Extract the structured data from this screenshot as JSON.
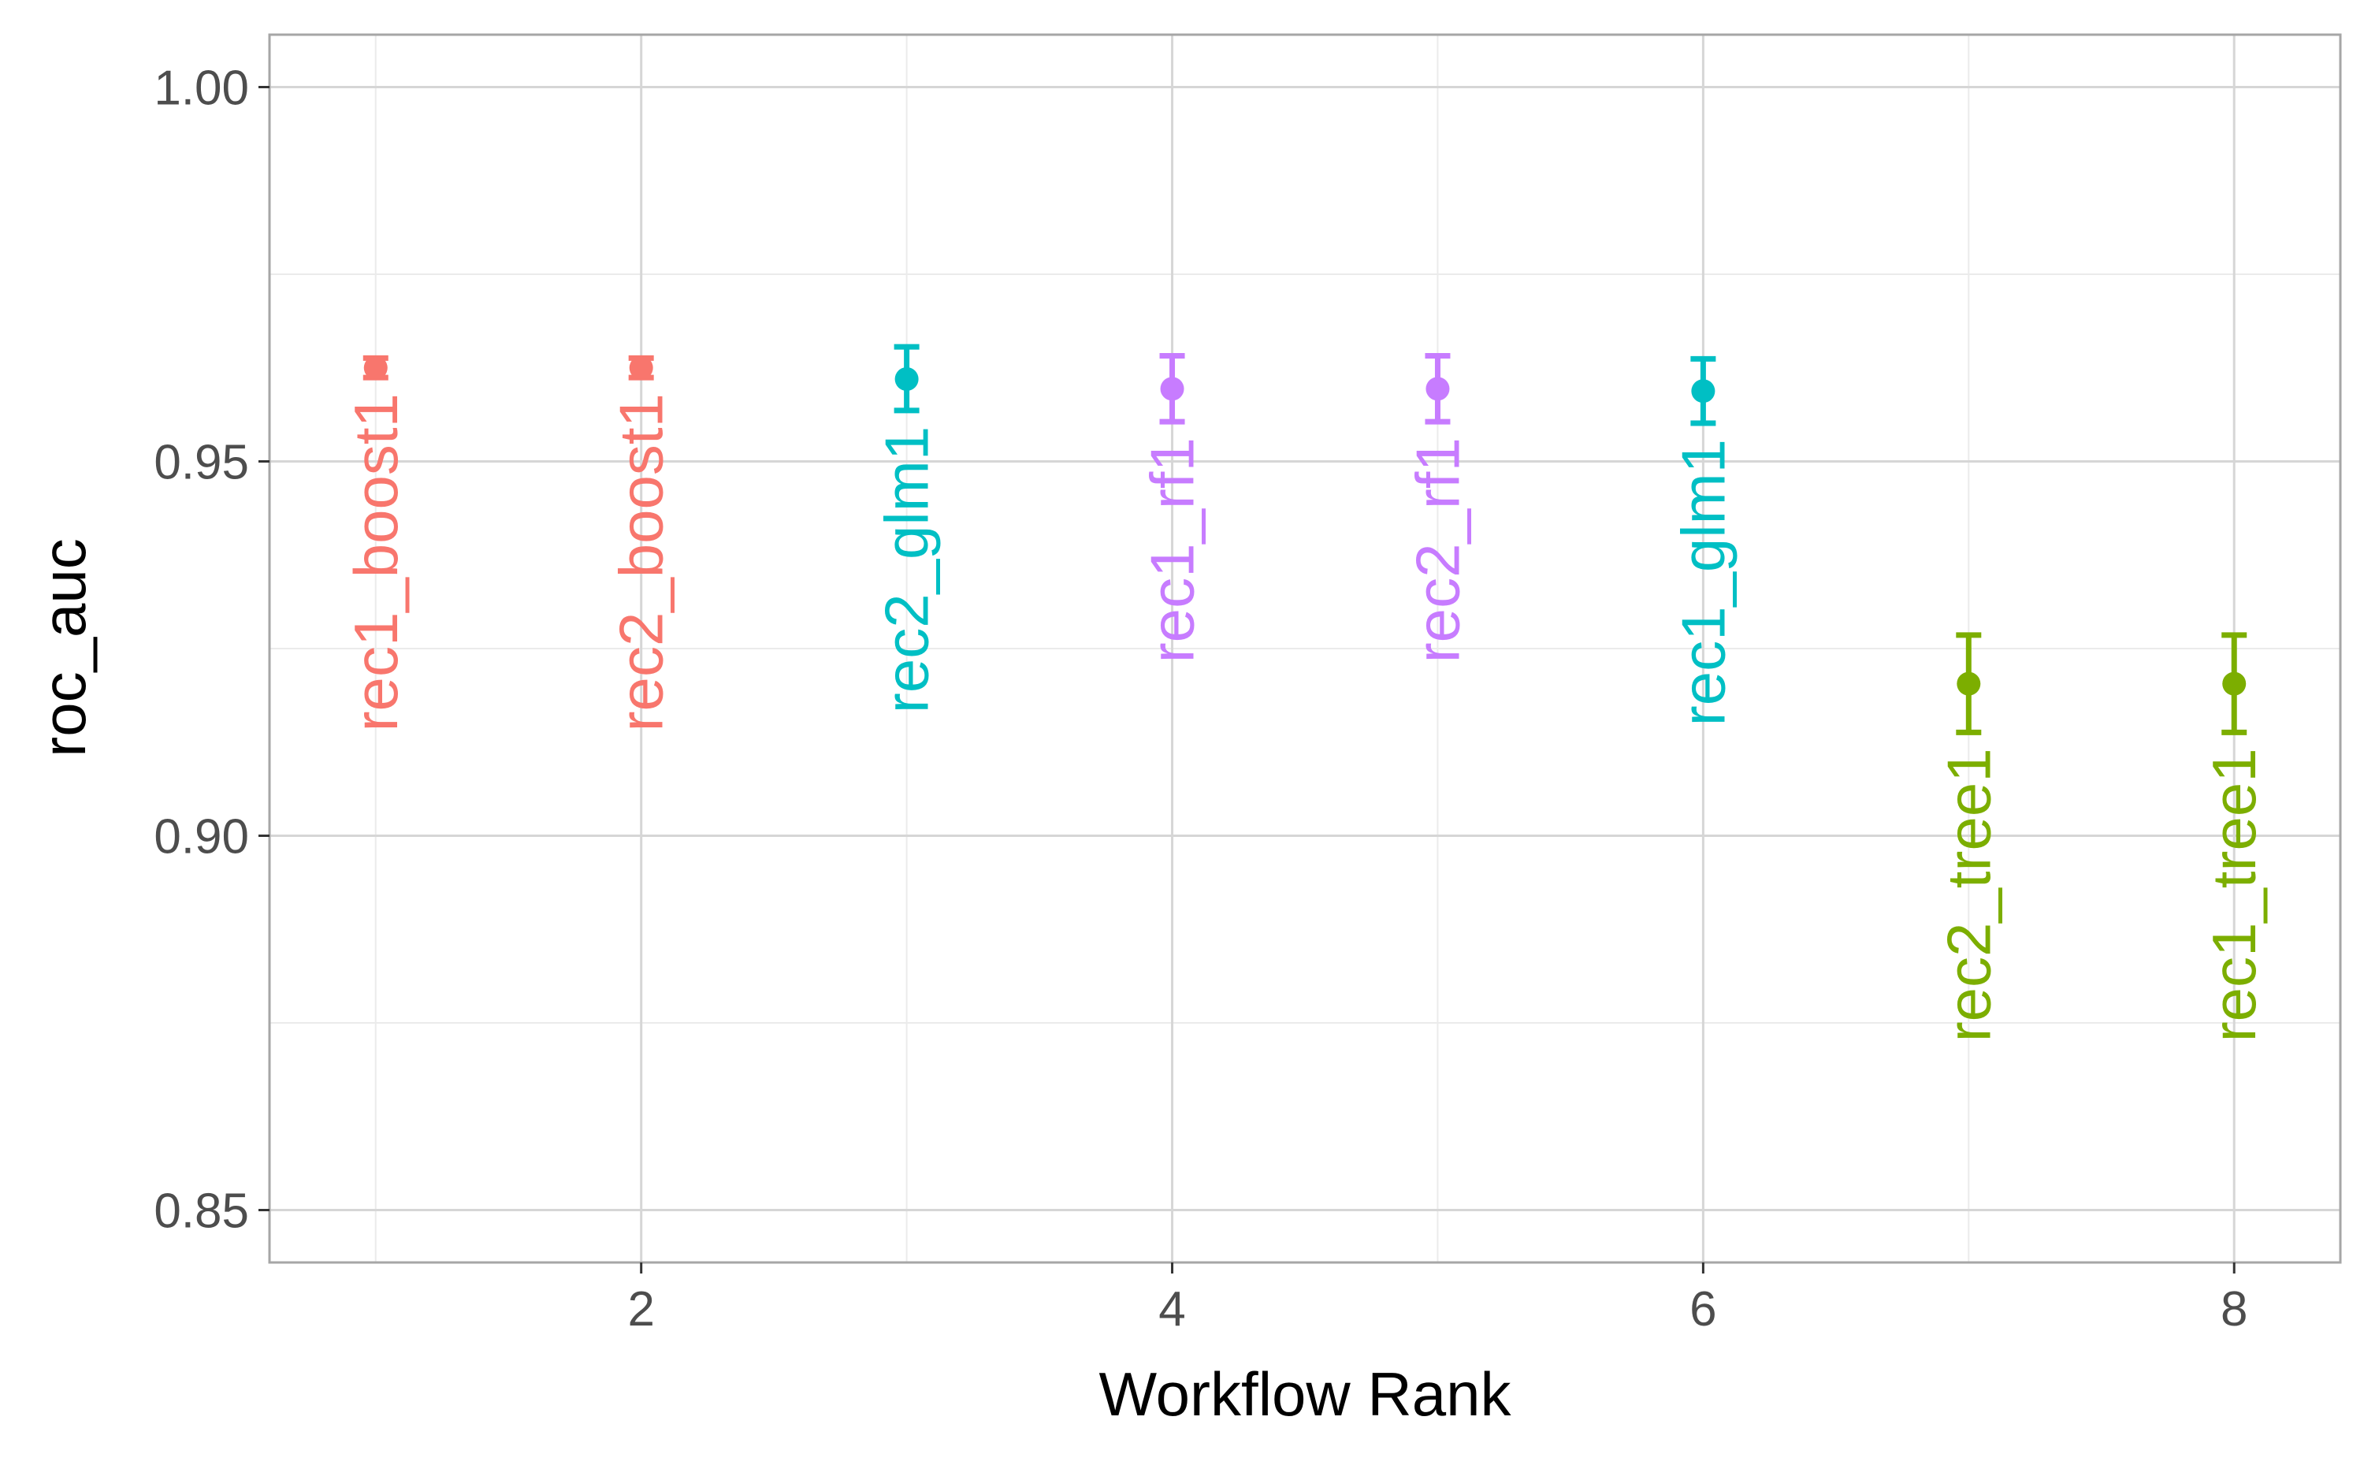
{
  "chart_data": {
    "type": "scatter",
    "title": "",
    "xlabel": "Workflow Rank",
    "ylabel": "roc_auc",
    "xlim": [
      0.6,
      8.4
    ],
    "ylim": [
      0.843,
      1.007
    ],
    "x_ticks": [
      2,
      4,
      6,
      8
    ],
    "x_tick_labels": [
      "2",
      "4",
      "6",
      "8"
    ],
    "y_ticks": [
      0.85,
      0.9,
      0.95,
      1.0
    ],
    "y_tick_labels": [
      "0.85",
      "0.90",
      "0.95",
      "1.00"
    ],
    "grid": true,
    "legend": "none",
    "points": [
      {
        "rank": 1,
        "label": "rec1_boost1",
        "model": "boost",
        "mean": 0.9625,
        "lower": 0.9612,
        "upper": 0.9638
      },
      {
        "rank": 2,
        "label": "rec2_boost1",
        "model": "boost",
        "mean": 0.9625,
        "lower": 0.9612,
        "upper": 0.9638
      },
      {
        "rank": 3,
        "label": "rec2_glm1",
        "model": "glm",
        "mean": 0.961,
        "lower": 0.9568,
        "upper": 0.9653
      },
      {
        "rank": 4,
        "label": "rec1_rf1",
        "model": "rf",
        "mean": 0.9597,
        "lower": 0.9553,
        "upper": 0.9641
      },
      {
        "rank": 5,
        "label": "rec2_rf1",
        "model": "rf",
        "mean": 0.9597,
        "lower": 0.9553,
        "upper": 0.9641
      },
      {
        "rank": 6,
        "label": "rec1_glm1",
        "model": "glm",
        "mean": 0.9594,
        "lower": 0.9551,
        "upper": 0.9637
      },
      {
        "rank": 7,
        "label": "rec2_tree1",
        "model": "tree",
        "mean": 0.9203,
        "lower": 0.9138,
        "upper": 0.9268
      },
      {
        "rank": 8,
        "label": "rec1_tree1",
        "model": "tree",
        "mean": 0.9203,
        "lower": 0.9138,
        "upper": 0.9268
      }
    ],
    "colors": {
      "boost": "#F8766D",
      "glm": "#00BFC4",
      "rf": "#C77CFF",
      "tree": "#7CAE00"
    }
  }
}
